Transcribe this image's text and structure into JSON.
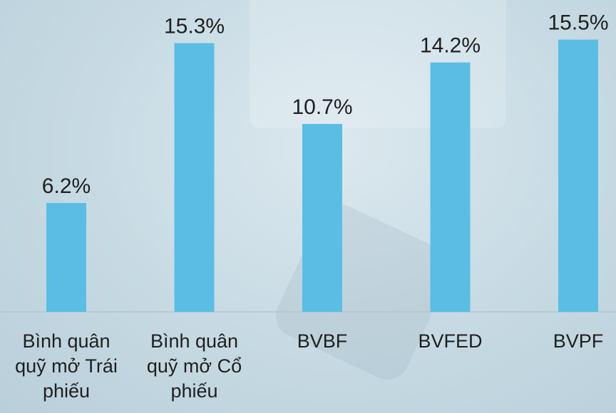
{
  "chart_data": {
    "type": "bar",
    "categories": [
      "Bình quân quỹ mở Trái phiếu",
      "Bình quân quỹ mở Cổ phiếu",
      "BVBF",
      "BVFED",
      "BVPF"
    ],
    "values": [
      6.2,
      15.3,
      10.7,
      14.2,
      15.5
    ],
    "value_labels": [
      "6.2%",
      "15.3%",
      "10.7%",
      "14.2%",
      "15.5%"
    ],
    "color": "#5bbde4",
    "ylim": [
      0,
      18
    ]
  }
}
